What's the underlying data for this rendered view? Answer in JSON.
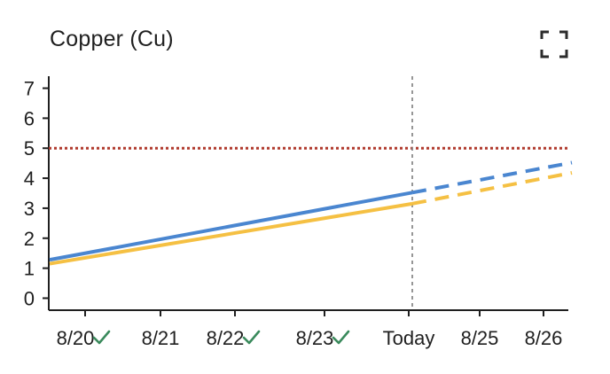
{
  "header": {
    "title": "Copper (Cu)",
    "expand_icon": "fullscreen-icon"
  },
  "colors": {
    "series_blue": "#4a86d0",
    "series_yellow": "#f5c043",
    "threshold_red": "#b03a2e",
    "today_line": "#8a8a8a",
    "check_green": "#3a8a5c",
    "axis": "#1f1f1f"
  },
  "chart_data": {
    "type": "line",
    "title": "Copper (Cu)",
    "xlabel": "",
    "ylabel": "",
    "ylim": [
      -0.4,
      7.4
    ],
    "yticks": [
      0,
      1,
      2,
      3,
      4,
      5,
      6,
      7
    ],
    "x_categories": [
      "8/20",
      "8/21",
      "8/22",
      "8/23",
      "Today",
      "8/25",
      "8/26"
    ],
    "x_checked": [
      true,
      false,
      true,
      true,
      false,
      false,
      false
    ],
    "today_index": 4,
    "threshold": 5,
    "series": [
      {
        "color": "#4a86d0",
        "points": [
          {
            "x": -0.45,
            "y": 1.28
          },
          {
            "x": 4.0,
            "y": 3.52
          },
          {
            "x": 6.35,
            "y": 4.52
          }
        ]
      },
      {
        "color": "#f5c043",
        "points": [
          {
            "x": -0.45,
            "y": 1.15
          },
          {
            "x": 4.0,
            "y": 3.15
          },
          {
            "x": 6.35,
            "y": 4.18
          }
        ]
      }
    ]
  }
}
